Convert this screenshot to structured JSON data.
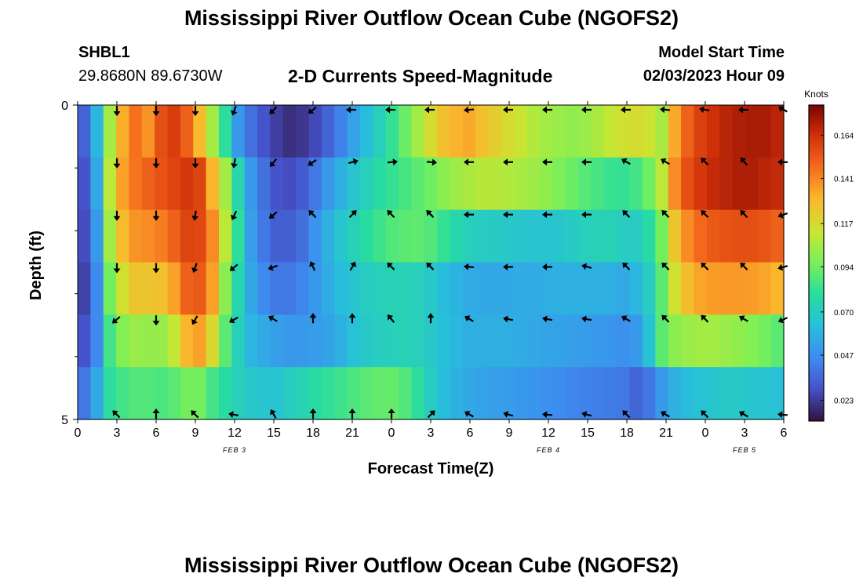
{
  "page": {
    "title_top": "Mississippi River Outflow Ocean Cube (NGOFS2)",
    "title_bottom": "Mississippi River Outflow Ocean Cube (NGOFS2)",
    "station_id": "SHBL1",
    "station_coords": "29.8680N  89.6730W",
    "subtitle": "2-D Currents Speed-Magnitude",
    "model_start_label": "Model Start Time",
    "model_start_value": "02/03/2023 Hour 09"
  },
  "chart_data": {
    "type": "heatmap",
    "title": "2-D Currents Speed-Magnitude",
    "xlabel": "Forecast Time(Z)",
    "ylabel": "Depth (ft)",
    "x_tick_labels": [
      "0",
      "3",
      "6",
      "9",
      "12",
      "15",
      "18",
      "21",
      "0",
      "3",
      "6",
      "9",
      "12",
      "15",
      "18",
      "21",
      "0",
      "3",
      "6"
    ],
    "x_ticks_hours": [
      0,
      3,
      6,
      9,
      12,
      15,
      18,
      21,
      24,
      27,
      30,
      33,
      36,
      39,
      42,
      45,
      48,
      51,
      54
    ],
    "x_range_hours": [
      0,
      54
    ],
    "date_labels": [
      {
        "text": "FEB 3",
        "hour": 12
      },
      {
        "text": "FEB 4",
        "hour": 36
      },
      {
        "text": "FEB 5",
        "hour": 51
      }
    ],
    "y_tick_labels": [
      "0",
      "5"
    ],
    "y_range": [
      0,
      5
    ],
    "y_minor_ticks": [
      1,
      2,
      3,
      4
    ],
    "depths_ft": [
      0,
      1,
      2,
      3,
      4,
      5
    ],
    "colorbar": {
      "label": "Knots",
      "ticks": [
        "0.023",
        "0.047",
        "0.070",
        "0.094",
        "0.117",
        "0.141",
        "0.164"
      ],
      "tick_values": [
        0.023,
        0.047,
        0.07,
        0.094,
        0.117,
        0.141,
        0.164
      ],
      "range": [
        0.012,
        0.18
      ]
    },
    "speed_knots": [
      [
        0.034,
        0.06,
        0.105,
        0.132,
        0.146,
        0.138,
        0.155,
        0.16,
        0.15,
        0.129,
        0.105,
        0.08,
        0.05,
        0.038,
        0.03,
        0.024,
        0.02,
        0.022,
        0.027,
        0.034,
        0.043,
        0.053,
        0.062,
        0.072,
        0.082,
        0.093,
        0.105,
        0.117,
        0.127,
        0.131,
        0.133,
        0.127,
        0.122,
        0.117,
        0.113,
        0.108,
        0.105,
        0.103,
        0.101,
        0.103,
        0.107,
        0.112,
        0.115,
        0.117,
        0.114,
        0.106,
        0.133,
        0.15,
        0.159,
        0.164,
        0.168,
        0.17,
        0.171,
        0.171,
        0.168
      ],
      [
        0.03,
        0.055,
        0.11,
        0.135,
        0.145,
        0.15,
        0.154,
        0.158,
        0.162,
        0.158,
        0.13,
        0.105,
        0.075,
        0.05,
        0.038,
        0.03,
        0.028,
        0.032,
        0.04,
        0.05,
        0.058,
        0.066,
        0.072,
        0.078,
        0.082,
        0.086,
        0.09,
        0.094,
        0.1,
        0.104,
        0.107,
        0.109,
        0.109,
        0.108,
        0.106,
        0.104,
        0.101,
        0.097,
        0.093,
        0.089,
        0.086,
        0.083,
        0.082,
        0.085,
        0.094,
        0.11,
        0.14,
        0.155,
        0.162,
        0.166,
        0.168,
        0.17,
        0.17,
        0.168,
        0.166
      ],
      [
        0.028,
        0.05,
        0.105,
        0.128,
        0.138,
        0.14,
        0.143,
        0.15,
        0.158,
        0.157,
        0.14,
        0.11,
        0.08,
        0.052,
        0.04,
        0.033,
        0.033,
        0.038,
        0.048,
        0.058,
        0.066,
        0.073,
        0.079,
        0.084,
        0.088,
        0.09,
        0.091,
        0.088,
        0.082,
        0.076,
        0.072,
        0.07,
        0.069,
        0.068,
        0.067,
        0.066,
        0.066,
        0.067,
        0.069,
        0.072,
        0.073,
        0.073,
        0.07,
        0.07,
        0.078,
        0.095,
        0.125,
        0.14,
        0.148,
        0.152,
        0.154,
        0.155,
        0.155,
        0.153,
        0.15
      ],
      [
        0.025,
        0.045,
        0.095,
        0.115,
        0.125,
        0.125,
        0.127,
        0.135,
        0.15,
        0.152,
        0.135,
        0.1,
        0.075,
        0.055,
        0.045,
        0.04,
        0.04,
        0.044,
        0.05,
        0.056,
        0.062,
        0.066,
        0.07,
        0.072,
        0.073,
        0.073,
        0.072,
        0.068,
        0.062,
        0.059,
        0.056,
        0.055,
        0.055,
        0.055,
        0.056,
        0.056,
        0.057,
        0.058,
        0.058,
        0.058,
        0.058,
        0.057,
        0.055,
        0.06,
        0.07,
        0.09,
        0.115,
        0.128,
        0.134,
        0.136,
        0.137,
        0.137,
        0.136,
        0.134,
        0.13
      ],
      [
        0.03,
        0.045,
        0.085,
        0.098,
        0.103,
        0.102,
        0.102,
        0.112,
        0.13,
        0.135,
        0.118,
        0.09,
        0.072,
        0.06,
        0.055,
        0.052,
        0.05,
        0.05,
        0.051,
        0.053,
        0.058,
        0.064,
        0.068,
        0.07,
        0.072,
        0.073,
        0.072,
        0.068,
        0.063,
        0.06,
        0.058,
        0.057,
        0.057,
        0.057,
        0.056,
        0.055,
        0.054,
        0.053,
        0.052,
        0.051,
        0.05,
        0.049,
        0.047,
        0.05,
        0.065,
        0.09,
        0.1,
        0.103,
        0.105,
        0.105,
        0.103,
        0.101,
        0.098,
        0.095,
        0.09
      ],
      [
        0.04,
        0.055,
        0.08,
        0.085,
        0.088,
        0.088,
        0.087,
        0.09,
        0.095,
        0.095,
        0.085,
        0.078,
        0.072,
        0.068,
        0.066,
        0.066,
        0.07,
        0.074,
        0.078,
        0.081,
        0.084,
        0.087,
        0.09,
        0.092,
        0.092,
        0.088,
        0.08,
        0.07,
        0.062,
        0.058,
        0.055,
        0.053,
        0.052,
        0.051,
        0.05,
        0.049,
        0.047,
        0.046,
        0.044,
        0.043,
        0.042,
        0.041,
        0.04,
        0.035,
        0.04,
        0.05,
        0.058,
        0.062,
        0.065,
        0.067,
        0.068,
        0.068,
        0.067,
        0.066,
        0.064
      ]
    ],
    "arrow_hours": [
      3,
      6,
      9,
      12,
      15,
      18,
      21,
      24,
      27,
      30,
      33,
      36,
      39,
      42,
      45,
      48,
      51,
      54
    ],
    "direction_deg": [
      [
        180,
        180,
        180,
        200,
        225,
        230,
        270,
        270,
        270,
        265,
        270,
        270,
        270,
        270,
        275,
        280,
        270,
        300
      ],
      [
        180,
        180,
        180,
        190,
        220,
        235,
        75,
        85,
        95,
        270,
        270,
        270,
        270,
        300,
        300,
        315,
        320,
        270
      ],
      [
        180,
        180,
        190,
        205,
        230,
        315,
        45,
        315,
        315,
        270,
        270,
        270,
        270,
        315,
        315,
        315,
        315,
        250
      ],
      [
        180,
        180,
        200,
        230,
        250,
        335,
        30,
        315,
        315,
        275,
        270,
        270,
        285,
        315,
        315,
        315,
        315,
        255
      ],
      [
        230,
        180,
        210,
        240,
        300,
        0,
        0,
        320,
        0,
        300,
        280,
        280,
        280,
        300,
        315,
        315,
        300,
        245
      ],
      [
        315,
        0,
        315,
        280,
        330,
        0,
        0,
        0,
        45,
        300,
        285,
        275,
        285,
        315,
        300,
        315,
        300,
        275
      ]
    ]
  }
}
